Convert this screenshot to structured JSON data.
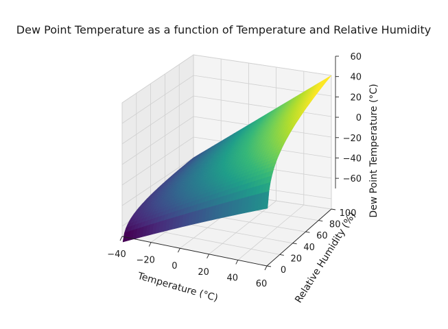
{
  "chart_data": {
    "type": "surface",
    "title": "Dew Point Temperature as a function of Temperature and Relative Humidity",
    "xlabel": "Temperature (°C)",
    "ylabel": "Relative Humidity (%)",
    "zlabel": "Dew Point Temperature (°C)",
    "xlim": [
      -40,
      60
    ],
    "ylim": [
      0,
      100
    ],
    "zlim": [
      -70,
      60
    ],
    "xticks": [
      -40,
      -20,
      0,
      20,
      40,
      60
    ],
    "yticks": [
      0,
      20,
      40,
      60,
      80,
      100
    ],
    "zticks": [
      -60,
      -40,
      -20,
      0,
      20,
      40,
      60
    ],
    "colormap": "viridis",
    "grid": true,
    "surface_corners": [
      {
        "temperature": -40,
        "humidity": 1,
        "dew_point": -70
      },
      {
        "temperature": 60,
        "humidity": 1,
        "dew_point": -10
      },
      {
        "temperature": -40,
        "humidity": 100,
        "dew_point": -40
      },
      {
        "temperature": 60,
        "humidity": 100,
        "dew_point": 60
      }
    ],
    "surface_grid": {
      "temperature": [
        -40,
        -30,
        -20,
        -10,
        0,
        10,
        20,
        30,
        40,
        50,
        60
      ],
      "humidity": [
        1,
        10,
        20,
        30,
        40,
        50,
        60,
        70,
        80,
        90,
        100
      ]
    }
  }
}
